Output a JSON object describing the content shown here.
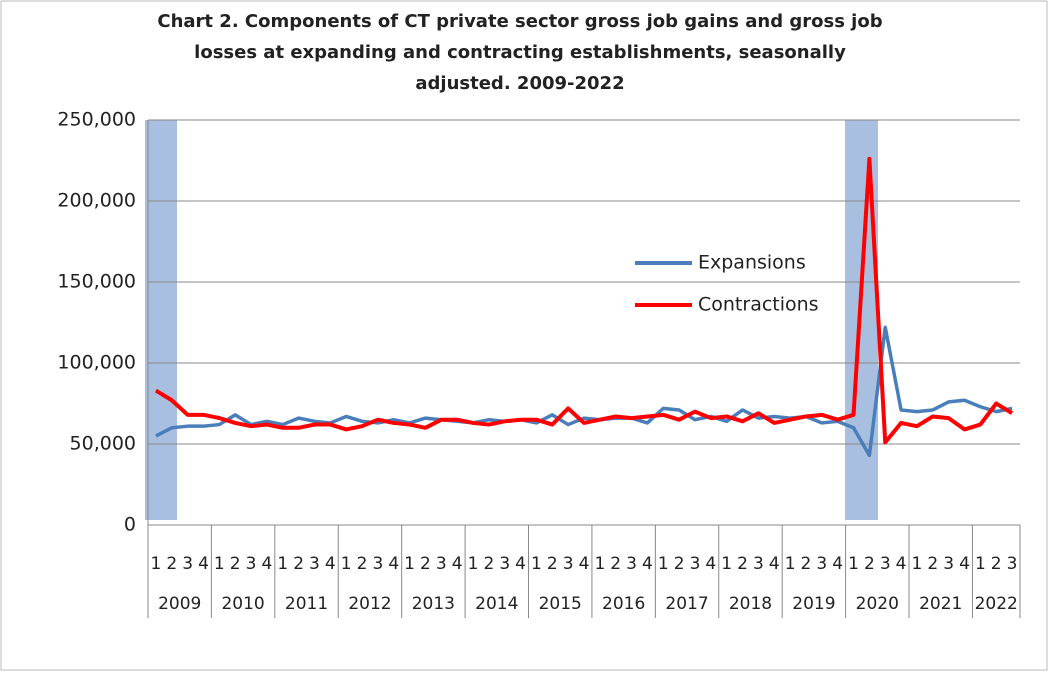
{
  "chart_data": {
    "type": "line",
    "title": [
      "Chart 2. Components of CT private sector gross job gains and gross  job",
      "losses at expanding and contracting establishments, seasonally",
      "adjusted.  2009-2022"
    ],
    "categories": [
      "1",
      "2",
      "3",
      "4",
      "1",
      "2",
      "3",
      "4",
      "1",
      "2",
      "3",
      "4",
      "1",
      "2",
      "3",
      "4",
      "1",
      "2",
      "3",
      "4",
      "1",
      "2",
      "3",
      "4",
      "1",
      "2",
      "3",
      "4",
      "1",
      "2",
      "3",
      "4",
      "1",
      "2",
      "3",
      "4",
      "1",
      "2",
      "3",
      "4",
      "1",
      "2",
      "3",
      "4",
      "1",
      "2",
      "3",
      "4",
      "1",
      "2",
      "3",
      "4",
      "1",
      "2",
      "3"
    ],
    "years": [
      "2009",
      "2010",
      "2011",
      "2012",
      "2013",
      "2014",
      "2015",
      "2016",
      "2017",
      "2018",
      "2019",
      "2020",
      "2021",
      "2022"
    ],
    "series": [
      {
        "name": "Expansions",
        "color": "#4a7ebb",
        "values": [
          55000,
          60000,
          61000,
          61000,
          62000,
          68000,
          62000,
          64000,
          62000,
          66000,
          64000,
          63000,
          67000,
          64000,
          63000,
          65000,
          63000,
          66000,
          65000,
          64000,
          63000,
          65000,
          64000,
          65000,
          63000,
          68000,
          62000,
          66000,
          65000,
          66000,
          66000,
          63000,
          72000,
          71000,
          65000,
          67000,
          64000,
          71000,
          66000,
          67000,
          66000,
          67000,
          63000,
          64000,
          60000,
          43000,
          122000,
          71000,
          70000,
          71000,
          76000,
          77000,
          73000,
          70000,
          72000
        ]
      },
      {
        "name": "Contractions",
        "color": "#ff0000",
        "values": [
          83000,
          77000,
          68000,
          68000,
          66000,
          63000,
          61000,
          62000,
          60000,
          60000,
          62000,
          62000,
          59000,
          61000,
          65000,
          63000,
          62000,
          60000,
          65000,
          65000,
          63000,
          62000,
          64000,
          65000,
          65000,
          62000,
          72000,
          63000,
          65000,
          67000,
          66000,
          67000,
          68000,
          65000,
          70000,
          66000,
          67000,
          64000,
          69000,
          63000,
          65000,
          67000,
          68000,
          65000,
          68000,
          226000,
          51000,
          63000,
          61000,
          67000,
          66000,
          59000,
          62000,
          75000,
          69000
        ]
      }
    ],
    "ylim": [
      0,
      250000
    ],
    "yticks": [
      0,
      {
        "value": 50000,
        "label": "50,000"
      },
      {
        "value": 100000,
        "label": "100,000"
      },
      {
        "value": 150000,
        "label": "150,000"
      },
      {
        "value": 200000,
        "label": "200,000"
      },
      {
        "value": 250000,
        "label": "250,000"
      }
    ],
    "grid": true
  }
}
